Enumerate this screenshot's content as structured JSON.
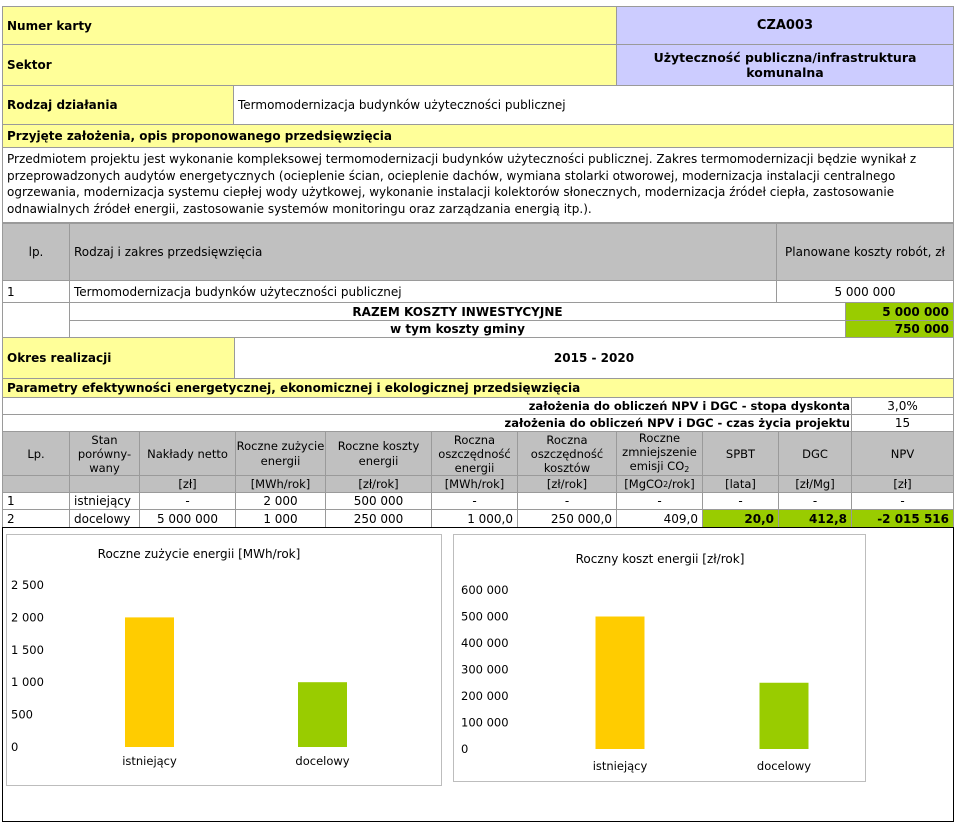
{
  "header": {
    "numer_karty_label": "Numer karty",
    "numer_karty_value": "CZA003",
    "sektor_label": "Sektor",
    "sektor_value": "Użyteczność publiczna/infrastruktura komunalna",
    "rodzaj_label": "Rodzaj działania",
    "rodzaj_value": "Termomodernizacja budynków użyteczności publicznej"
  },
  "assumptions": {
    "title": "Przyjęte założenia, opis proponowanego przedsięwzięcia",
    "text": "Przedmiotem projektu jest wykonanie kompleksowej termomodernizacji budynków użyteczności publicznej. Zakres termomodernizacji będzie wynikał z przeprowadzonych audytów energetycznych (ocieplenie ścian, ocieplenie dachów, wymiana stolarki otworowej, modernizacja instalacji centralnego ogrzewania, modernizacja systemu ciepłej wody użytkowej, wykonanie instalacji kolektorów słonecznych, modernizacja źródeł ciepła, zastosowanie odnawialnych źródeł energii, zastosowanie systemów monitoringu oraz zarządzania energią itp.)."
  },
  "costs": {
    "headers": {
      "lp": "lp.",
      "name": "Rodzaj i zakres przedsięwzięcia",
      "cost": "Planowane koszty robót, zł"
    },
    "rows": [
      {
        "lp": "1",
        "name": "Termomodernizacja budynków użyteczności publicznej",
        "cost": "5 000 000"
      }
    ],
    "total_label": "RAZEM KOSZTY INWESTYCYJNE",
    "total_value": "5 000 000",
    "gmina_label": "w tym koszty gminy",
    "gmina_value": "750 000"
  },
  "period": {
    "label": "Okres realizacji",
    "value": "2015 - 2020"
  },
  "params": {
    "title": "Parametry efektywności energetycznej, ekonomicznej i ekologicznej przedsięwzięcia",
    "discount_label": "założenia do obliczeń NPV i DGC - stopa dyskonta",
    "discount_value": "3,0%",
    "lifetime_label": "założenia do obliczeń NPV i DGC - czas życia projektu",
    "lifetime_value": "15",
    "headers": {
      "lp": "Lp.",
      "stan": [
        "Stan",
        "porówny-",
        "wany"
      ],
      "naklady": "Nakłady netto",
      "zuzycie": [
        "Roczne zużycie",
        "energii"
      ],
      "koszty": [
        "Roczne koszty",
        "energii"
      ],
      "osz_energii": [
        "Roczna",
        "oszczędność",
        "energii"
      ],
      "osz_kosztow": [
        "Roczna",
        "oszczędność",
        "kosztów"
      ],
      "emisja": [
        "Roczne",
        "zmniejszenie",
        "emisji CO",
        "2"
      ],
      "spbt": "SPBT",
      "dgc": "DGC",
      "npv": "NPV"
    },
    "units": {
      "naklady": "[zł]",
      "zuzycie": "[MWh/rok]",
      "koszty": "[zł/rok]",
      "osz_energii": "[MWh/rok]",
      "osz_kosztow": "[zł/rok]",
      "emisja_pre": "[MgCO",
      "emisja_sub": "2",
      "emisja_post": "/rok]",
      "spbt": "[lata]",
      "dgc": "[zł/Mg]",
      "npv": "[zł]"
    },
    "rows": [
      {
        "lp": "1",
        "stan": "istniejący",
        "naklady": "-",
        "zuzycie": "2 000",
        "koszty": "500 000",
        "osz_energii": "-",
        "osz_kosztow": "-",
        "emisja": "-",
        "spbt": "-",
        "dgc": "-",
        "npv": "-"
      },
      {
        "lp": "2",
        "stan": "docelowy",
        "naklady": "5 000 000",
        "zuzycie": "1 000",
        "koszty": "250 000",
        "osz_energii": "1 000,0",
        "osz_kosztow": "250 000,0",
        "emisja": "409,0",
        "spbt": "20,0",
        "dgc": "412,8",
        "npv": "-2 015 516"
      }
    ]
  },
  "colors": {
    "yellow_bar": "#ffcc00",
    "green_bar": "#99cc00",
    "header_yellow": "#ffff99",
    "header_lavender": "#ccccff",
    "grey": "#c0c0c0"
  },
  "chart_data": [
    {
      "type": "bar",
      "title": "Roczne zużycie energii [MWh/rok]",
      "categories": [
        "istniejący",
        "docelowy"
      ],
      "values": [
        2000,
        1000
      ],
      "ylim": [
        0,
        2500
      ],
      "yticks": [
        0,
        500,
        1000,
        1500,
        2000,
        2500
      ],
      "ytick_labels": [
        "0",
        "500",
        "1 000",
        "1 500",
        "2 000",
        "2 500"
      ],
      "bar_colors": [
        "#ffcc00",
        "#99cc00"
      ],
      "legend": "none"
    },
    {
      "type": "bar",
      "title": "Roczny koszt energii [zł/rok]",
      "categories": [
        "istniejący",
        "docelowy"
      ],
      "values": [
        500000,
        250000
      ],
      "ylim": [
        0,
        600000
      ],
      "yticks": [
        0,
        100000,
        200000,
        300000,
        400000,
        500000,
        600000
      ],
      "ytick_labels": [
        "0",
        "100 000",
        "200 000",
        "300 000",
        "400 000",
        "500 000",
        "600 000"
      ],
      "bar_colors": [
        "#ffcc00",
        "#99cc00"
      ],
      "legend": "none"
    }
  ]
}
